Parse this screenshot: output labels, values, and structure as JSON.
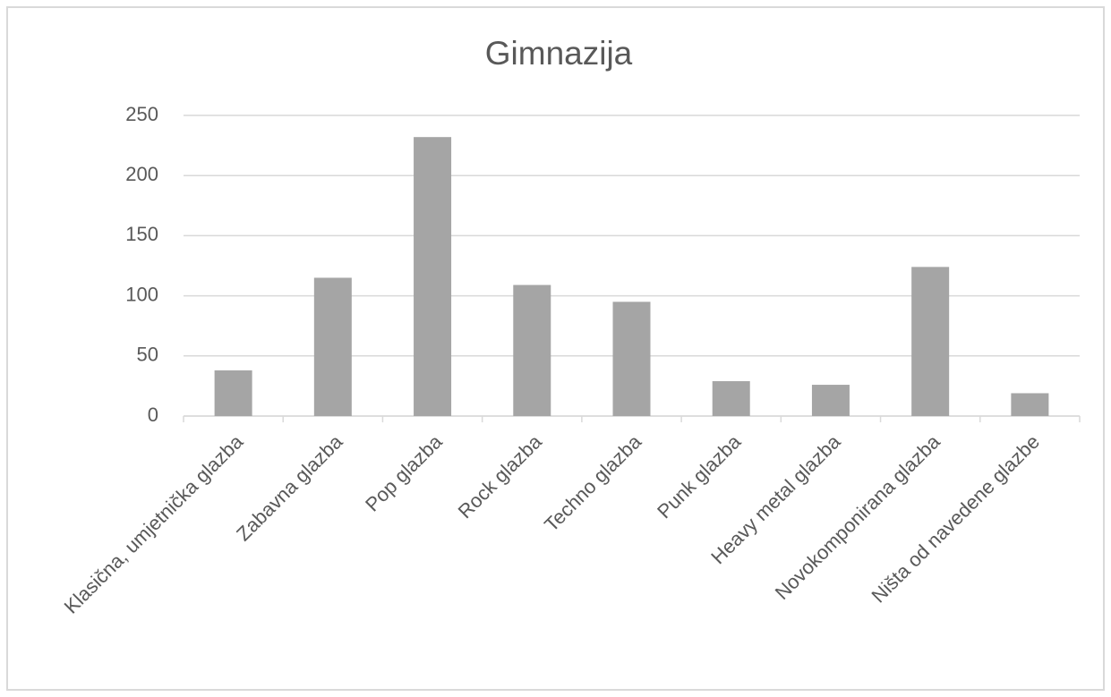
{
  "chart_data": {
    "type": "bar",
    "title": "Gimnazija",
    "categories": [
      "Klasična, umjetnička glazba",
      "Zabavna glazba",
      "Pop glazba",
      "Rock glazba",
      "Techno glazba",
      "Punk glazba",
      "Heavy metal glazba",
      "Novokomponirana glazba",
      "Ništa od navedene glazbe"
    ],
    "values": [
      38,
      115,
      232,
      109,
      95,
      29,
      26,
      124,
      19
    ],
    "color": "#a5a5a5",
    "ylim": [
      0,
      250
    ],
    "yticks": [
      0,
      50,
      100,
      150,
      200,
      250
    ],
    "grid": true
  }
}
